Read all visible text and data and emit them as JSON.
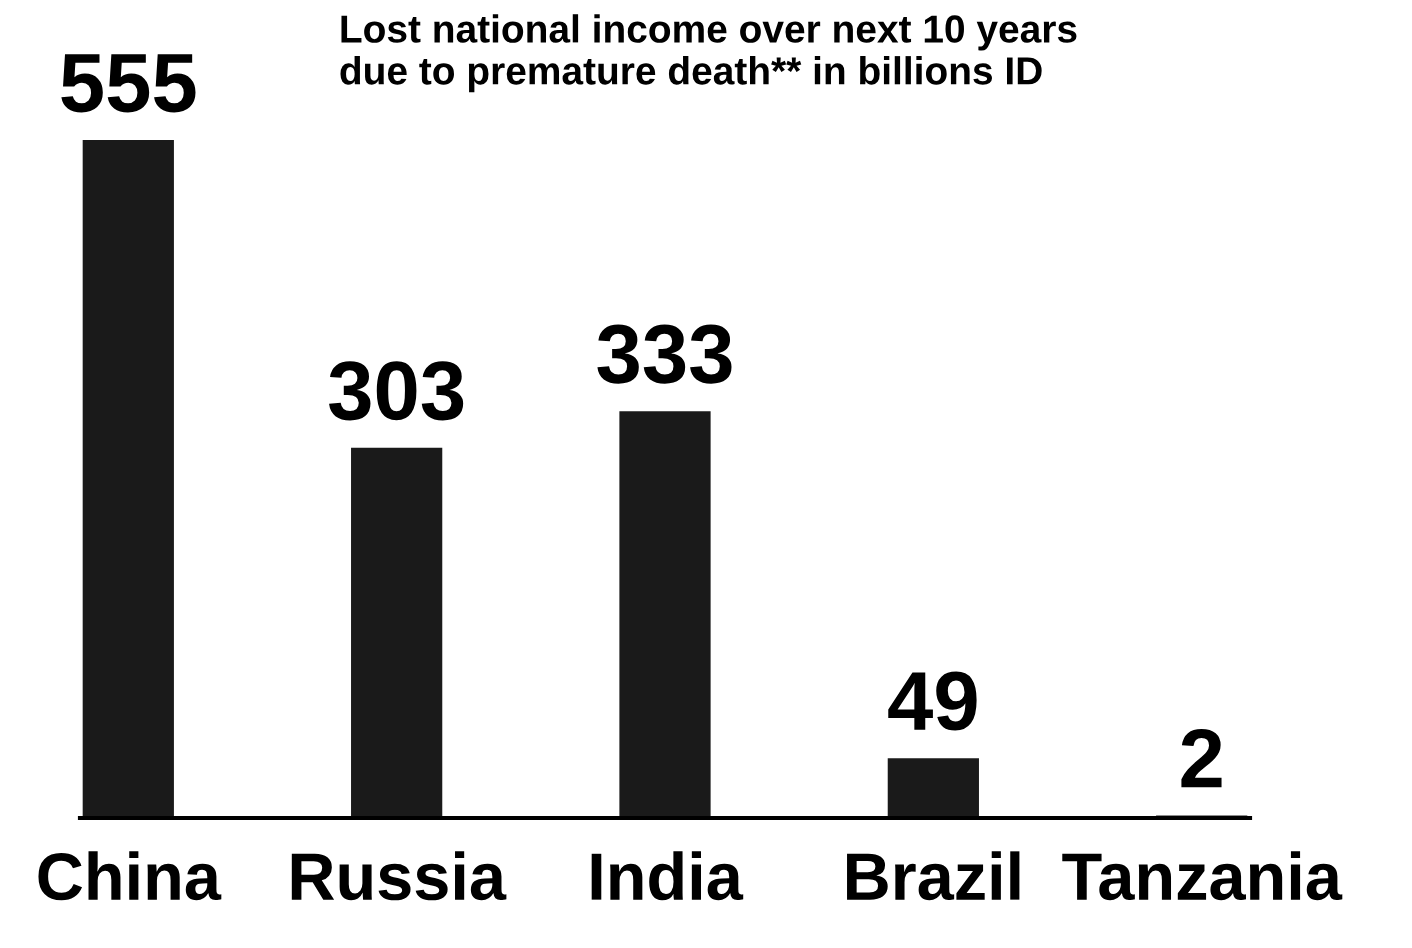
{
  "chart_data": {
    "type": "bar",
    "title": "Lost national income over next 10 years\ndue to premature death** in billions ID",
    "categories": [
      "China",
      "Russia",
      "India",
      "Brazil",
      "Tanzania"
    ],
    "values": [
      555,
      303,
      333,
      49,
      2
    ],
    "color": "#1a1a1a",
    "data_labels": true,
    "grid": false,
    "legend": false
  }
}
